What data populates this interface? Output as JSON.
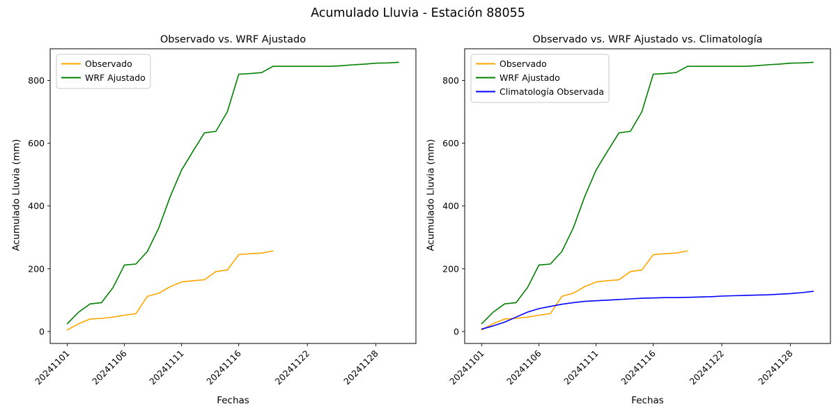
{
  "figure": {
    "title": "Acumulado Lluvia - Estación 88055"
  },
  "chart_data": [
    {
      "type": "line",
      "title": "Observado vs. WRF Ajustado",
      "xlabel": "Fechas",
      "ylabel": "Acumulado Lluvia (mm)",
      "grid": false,
      "legend_position": "upper left",
      "xlim": [
        -0.5,
        31.5
      ],
      "ylim": [
        -38,
        901
      ],
      "yticks": [
        0,
        200,
        400,
        600,
        800
      ],
      "xticks": [
        {
          "day": 1,
          "label": "20241101"
        },
        {
          "day": 6,
          "label": "20241106"
        },
        {
          "day": 11,
          "label": "20241111"
        },
        {
          "day": 16,
          "label": "20241116"
        },
        {
          "day": 22,
          "label": "20241122"
        },
        {
          "day": 28,
          "label": "20241128"
        }
      ],
      "series": [
        {
          "name": "Observado",
          "color": "#ffa500",
          "x": [
            1,
            2,
            3,
            4,
            5,
            6,
            7,
            8,
            9,
            10,
            11,
            12,
            13,
            14,
            15,
            16,
            17,
            18,
            19
          ],
          "values": [
            5,
            25,
            40,
            42,
            46,
            52,
            57,
            112,
            122,
            143,
            158,
            162,
            165,
            191,
            196,
            245,
            248,
            250,
            257
          ]
        },
        {
          "name": "WRF Ajustado",
          "color": "#008000",
          "x": [
            1,
            2,
            3,
            4,
            5,
            6,
            7,
            8,
            9,
            10,
            11,
            12,
            13,
            14,
            15,
            16,
            17,
            18,
            19,
            20,
            21,
            22,
            23,
            24,
            25,
            26,
            27,
            28,
            29,
            30
          ],
          "values": [
            25,
            62,
            88,
            92,
            140,
            212,
            215,
            255,
            330,
            430,
            515,
            575,
            633,
            638,
            700,
            820,
            822,
            825,
            845,
            845,
            845,
            845,
            845,
            845,
            847,
            850,
            852,
            855,
            856,
            858
          ]
        }
      ]
    },
    {
      "type": "line",
      "title": "Observado vs. WRF Ajustado vs. Climatología",
      "xlabel": "Fechas",
      "ylabel": "Acumulado Lluvia (mm)",
      "grid": false,
      "legend_position": "upper left",
      "xlim": [
        -0.5,
        31.5
      ],
      "ylim": [
        -38,
        901
      ],
      "yticks": [
        0,
        200,
        400,
        600,
        800
      ],
      "xticks": [
        {
          "day": 1,
          "label": "20241101"
        },
        {
          "day": 6,
          "label": "20241106"
        },
        {
          "day": 11,
          "label": "20241111"
        },
        {
          "day": 16,
          "label": "20241116"
        },
        {
          "day": 22,
          "label": "20241122"
        },
        {
          "day": 28,
          "label": "20241128"
        }
      ],
      "series": [
        {
          "name": "Observado",
          "color": "#ffa500",
          "x": [
            1,
            2,
            3,
            4,
            5,
            6,
            7,
            8,
            9,
            10,
            11,
            12,
            13,
            14,
            15,
            16,
            17,
            18,
            19
          ],
          "values": [
            5,
            25,
            40,
            42,
            46,
            52,
            57,
            112,
            122,
            143,
            158,
            162,
            165,
            191,
            196,
            245,
            248,
            250,
            257
          ]
        },
        {
          "name": "WRF Ajustado",
          "color": "#008000",
          "x": [
            1,
            2,
            3,
            4,
            5,
            6,
            7,
            8,
            9,
            10,
            11,
            12,
            13,
            14,
            15,
            16,
            17,
            18,
            19,
            20,
            21,
            22,
            23,
            24,
            25,
            26,
            27,
            28,
            29,
            30
          ],
          "values": [
            25,
            62,
            88,
            92,
            140,
            212,
            215,
            255,
            330,
            430,
            515,
            575,
            633,
            638,
            700,
            820,
            822,
            825,
            845,
            845,
            845,
            845,
            845,
            845,
            847,
            850,
            852,
            855,
            856,
            858
          ]
        },
        {
          "name": "Climatología Observada",
          "color": "#0000ff",
          "x": [
            1,
            2,
            3,
            4,
            5,
            6,
            7,
            8,
            9,
            10,
            11,
            12,
            13,
            14,
            15,
            16,
            17,
            18,
            19,
            20,
            21,
            22,
            23,
            24,
            25,
            26,
            27,
            28,
            29,
            30
          ],
          "values": [
            8,
            18,
            30,
            46,
            62,
            73,
            80,
            87,
            92,
            96,
            98,
            100,
            102,
            104,
            106,
            107,
            108,
            108,
            109,
            110,
            111,
            113,
            114,
            115,
            116,
            117,
            119,
            121,
            124,
            128
          ]
        }
      ]
    }
  ]
}
